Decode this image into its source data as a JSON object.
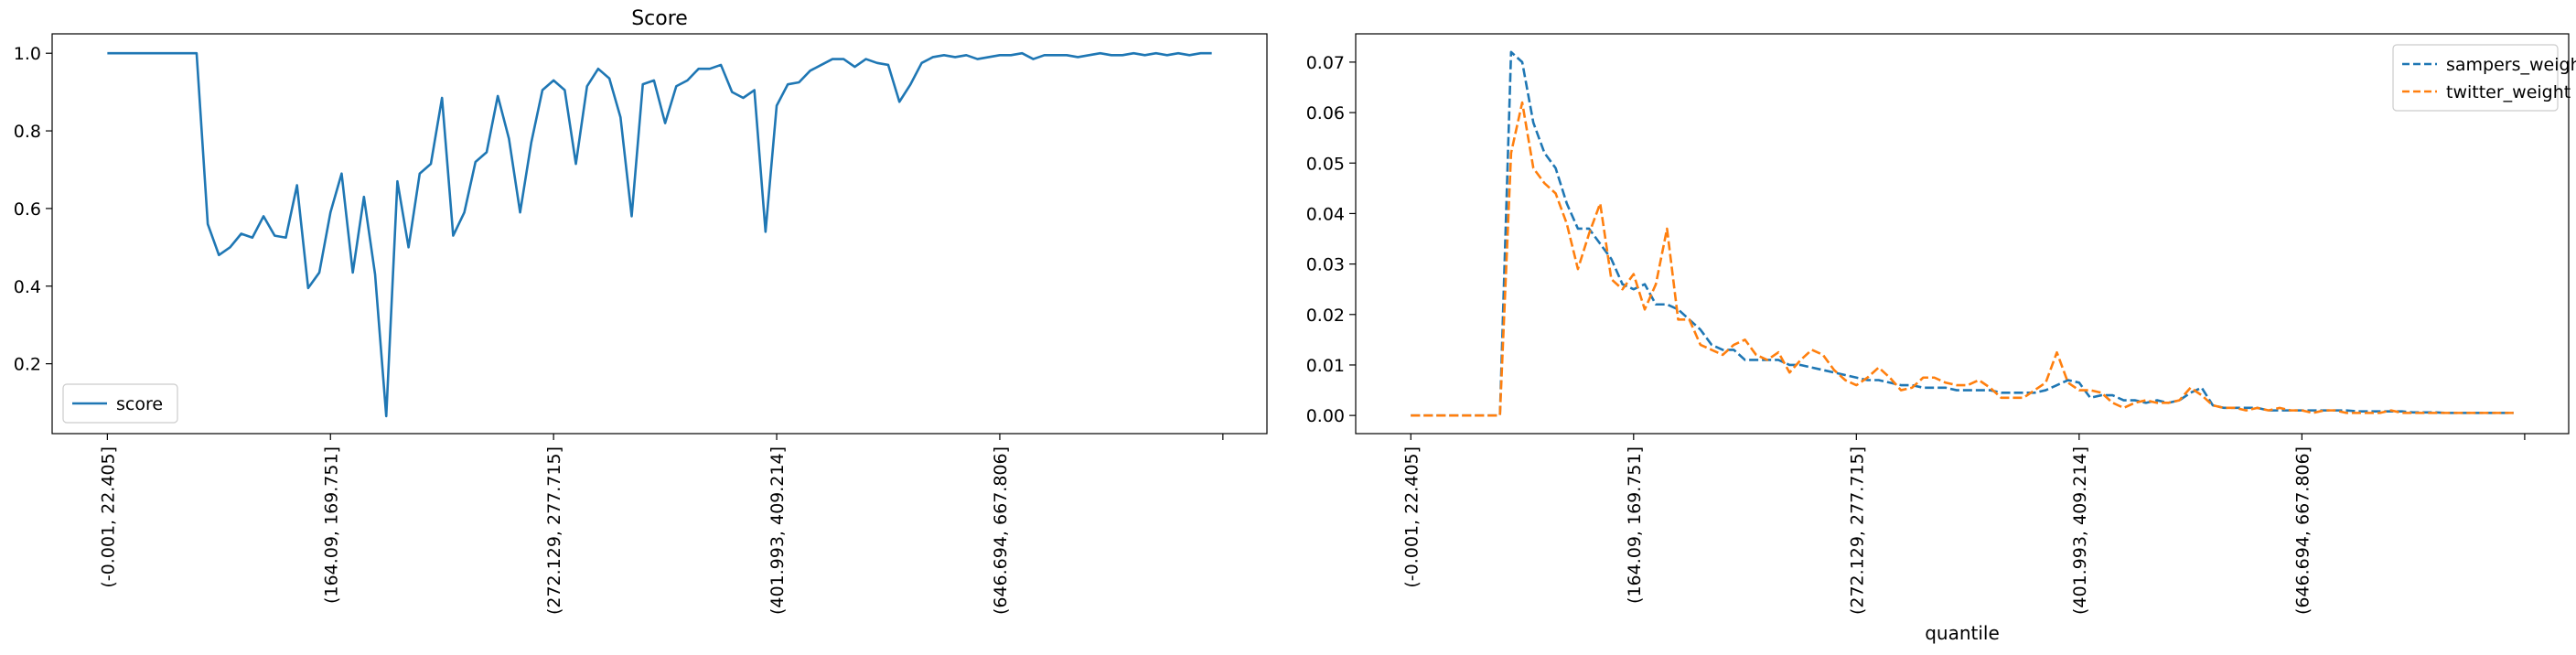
{
  "chart_data": [
    {
      "type": "line",
      "title": "Score",
      "xlabel": "",
      "ylabel": "",
      "x_count": 100,
      "xtick_labels": [
        "(-0.001, 22.405]",
        "(164.09, 169.751]",
        "(272.129, 277.715]",
        "(401.993, 409.214]",
        "(646.694, 667.806]",
        ""
      ],
      "xtick_indices": [
        0,
        20,
        40,
        60,
        80,
        100
      ],
      "xlim": [
        -4.95,
        103.95
      ],
      "ylim": [
        0.02,
        1.05
      ],
      "yticks": [
        0.2,
        0.4,
        0.6,
        0.8,
        1.0
      ],
      "ytick_labels": [
        "0.2",
        "0.4",
        "0.6",
        "0.8",
        "1.0"
      ],
      "grid": false,
      "legend": "lower left",
      "series": [
        {
          "name": "score",
          "color": "#1f77b4",
          "dashed": false,
          "values": [
            1.0,
            1.0,
            1.0,
            1.0,
            1.0,
            1.0,
            1.0,
            1.0,
            1.0,
            0.56,
            0.48,
            0.5,
            0.535,
            0.525,
            0.58,
            0.53,
            0.525,
            0.66,
            0.395,
            0.435,
            0.59,
            0.69,
            0.435,
            0.63,
            0.43,
            0.065,
            0.67,
            0.5,
            0.69,
            0.715,
            0.885,
            0.53,
            0.59,
            0.72,
            0.745,
            0.89,
            0.78,
            0.59,
            0.77,
            0.905,
            0.93,
            0.905,
            0.715,
            0.915,
            0.96,
            0.935,
            0.835,
            0.58,
            0.92,
            0.93,
            0.82,
            0.915,
            0.93,
            0.96,
            0.96,
            0.97,
            0.9,
            0.885,
            0.905,
            0.54,
            0.865,
            0.92,
            0.925,
            0.955,
            0.97,
            0.985,
            0.985,
            0.965,
            0.985,
            0.975,
            0.97,
            0.875,
            0.92,
            0.975,
            0.99,
            0.995,
            0.99,
            0.995,
            0.985,
            0.99,
            0.995,
            0.995,
            1.0,
            0.985,
            0.995,
            0.995,
            0.995,
            0.99,
            0.995,
            1.0,
            0.995,
            0.995,
            1.0,
            0.995,
            1.0,
            0.995,
            1.0,
            0.995,
            1.0,
            1.0
          ]
        }
      ]
    },
    {
      "type": "line",
      "title": "",
      "xlabel": "quantile",
      "ylabel": "",
      "x_count": 100,
      "xtick_labels": [
        "(-0.001, 22.405]",
        "(164.09, 169.751]",
        "(272.129, 277.715]",
        "(401.993, 409.214]",
        "(646.694, 667.806]",
        ""
      ],
      "xtick_indices": [
        0,
        20,
        40,
        60,
        80,
        100
      ],
      "xlim": [
        -4.95,
        103.95
      ],
      "ylim": [
        -0.0036,
        0.0756
      ],
      "yticks": [
        0.0,
        0.01,
        0.02,
        0.03,
        0.04,
        0.05,
        0.06,
        0.07
      ],
      "ytick_labels": [
        "0.00",
        "0.01",
        "0.02",
        "0.03",
        "0.04",
        "0.05",
        "0.06",
        "0.07"
      ],
      "grid": false,
      "legend": "upper right",
      "series": [
        {
          "name": "sampers_weight",
          "color": "#1f77b4",
          "dashed": true,
          "values": [
            0.0,
            0.0,
            0.0,
            0.0,
            0.0,
            0.0,
            0.0,
            0.0,
            0.0,
            0.072,
            0.07,
            0.058,
            0.052,
            0.049,
            0.042,
            0.037,
            0.037,
            0.034,
            0.031,
            0.026,
            0.025,
            0.026,
            0.022,
            0.022,
            0.021,
            0.019,
            0.017,
            0.014,
            0.013,
            0.013,
            0.011,
            0.011,
            0.011,
            0.011,
            0.01,
            0.01,
            0.0095,
            0.009,
            0.0085,
            0.008,
            0.0075,
            0.007,
            0.007,
            0.0065,
            0.006,
            0.006,
            0.0055,
            0.0055,
            0.0055,
            0.005,
            0.005,
            0.005,
            0.005,
            0.0045,
            0.0045,
            0.0045,
            0.0045,
            0.005,
            0.006,
            0.007,
            0.0065,
            0.0035,
            0.004,
            0.004,
            0.003,
            0.003,
            0.0025,
            0.003,
            0.0025,
            0.003,
            0.0045,
            0.0055,
            0.002,
            0.0015,
            0.0015,
            0.0015,
            0.0015,
            0.001,
            0.001,
            0.001,
            0.001,
            0.001,
            0.001,
            0.001,
            0.001,
            0.0008,
            0.0008,
            0.0008,
            0.0008,
            0.0008,
            0.0006,
            0.0006,
            0.0006,
            0.0005,
            0.0005,
            0.0005,
            0.0005,
            0.0005,
            0.0005,
            0.0005
          ]
        },
        {
          "name": "twitter_weight",
          "color": "#ff7f0e",
          "dashed": true,
          "values": [
            0.0,
            0.0,
            0.0,
            0.0,
            0.0,
            0.0,
            0.0,
            0.0,
            0.0,
            0.052,
            0.062,
            0.049,
            0.046,
            0.044,
            0.038,
            0.029,
            0.036,
            0.042,
            0.027,
            0.025,
            0.028,
            0.021,
            0.026,
            0.037,
            0.019,
            0.019,
            0.014,
            0.013,
            0.012,
            0.014,
            0.015,
            0.012,
            0.011,
            0.0125,
            0.0085,
            0.011,
            0.013,
            0.012,
            0.009,
            0.007,
            0.006,
            0.0075,
            0.0095,
            0.0075,
            0.005,
            0.0055,
            0.0075,
            0.0075,
            0.0065,
            0.006,
            0.006,
            0.007,
            0.0055,
            0.0035,
            0.0035,
            0.0035,
            0.005,
            0.0065,
            0.0125,
            0.0065,
            0.005,
            0.005,
            0.0045,
            0.0025,
            0.0015,
            0.0025,
            0.003,
            0.0025,
            0.0025,
            0.003,
            0.0055,
            0.004,
            0.002,
            0.0015,
            0.0015,
            0.001,
            0.0015,
            0.001,
            0.0015,
            0.001,
            0.001,
            0.0005,
            0.001,
            0.001,
            0.0005,
            0.0005,
            0.0005,
            0.0005,
            0.001,
            0.0005,
            0.0005,
            0.0005,
            0.0005,
            0.0005,
            0.0005,
            0.0005,
            0.0005,
            0.0005,
            0.0005,
            0.0005
          ]
        }
      ]
    }
  ]
}
